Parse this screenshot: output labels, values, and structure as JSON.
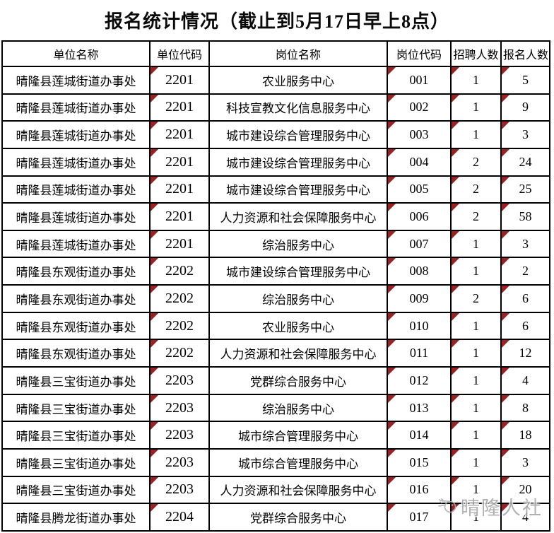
{
  "title": "报名统计情况（截止到5月17日早上8点）",
  "table": {
    "columns": [
      "单位名称",
      "单位代码",
      "岗位名称",
      "岗位代码",
      "招聘人数",
      "报名人数"
    ],
    "marker_columns": [
      "unit_code",
      "post_code",
      "recruit",
      "applicants"
    ],
    "rows": [
      {
        "unit": "晴隆县莲城街道办事处",
        "unit_code": "2201",
        "post": "农业服务中心",
        "post_code": "001",
        "recruit": "1",
        "applicants": "5"
      },
      {
        "unit": "晴隆县莲城街道办事处",
        "unit_code": "2201",
        "post": "科技宣教文化信息服务中心",
        "post_code": "002",
        "recruit": "1",
        "applicants": "9"
      },
      {
        "unit": "晴隆县莲城街道办事处",
        "unit_code": "2201",
        "post": "城市建设综合管理服务中心",
        "post_code": "003",
        "recruit": "1",
        "applicants": "3"
      },
      {
        "unit": "晴隆县莲城街道办事处",
        "unit_code": "2201",
        "post": "城市建设综合管理服务中心",
        "post_code": "004",
        "recruit": "2",
        "applicants": "24"
      },
      {
        "unit": "晴隆县莲城街道办事处",
        "unit_code": "2201",
        "post": "城市建设综合管理服务中心",
        "post_code": "005",
        "recruit": "2",
        "applicants": "25"
      },
      {
        "unit": "晴隆县莲城街道办事处",
        "unit_code": "2201",
        "post": "人力资源和社会保障服务中心",
        "post_code": "006",
        "recruit": "2",
        "applicants": "58"
      },
      {
        "unit": "晴隆县莲城街道办事处",
        "unit_code": "2201",
        "post": "综治服务中心",
        "post_code": "007",
        "recruit": "1",
        "applicants": "3"
      },
      {
        "unit": "晴隆县东观街道办事处",
        "unit_code": "2202",
        "post": "城市建设综合管理服务中心",
        "post_code": "008",
        "recruit": "1",
        "applicants": "2"
      },
      {
        "unit": "晴隆县东观街道办事处",
        "unit_code": "2202",
        "post": "综治服务中心",
        "post_code": "009",
        "recruit": "2",
        "applicants": "6"
      },
      {
        "unit": "晴隆县东观街道办事处",
        "unit_code": "2202",
        "post": "农业服务中心",
        "post_code": "010",
        "recruit": "1",
        "applicants": "6"
      },
      {
        "unit": "晴隆县东观街道办事处",
        "unit_code": "2202",
        "post": "人力资源和社会保障服务中心",
        "post_code": "011",
        "recruit": "1",
        "applicants": "12"
      },
      {
        "unit": "晴隆县三宝街道办事处",
        "unit_code": "2203",
        "post": "党群综合服务中心",
        "post_code": "012",
        "recruit": "1",
        "applicants": "4"
      },
      {
        "unit": "晴隆县三宝街道办事处",
        "unit_code": "2203",
        "post": "综治服务中心",
        "post_code": "013",
        "recruit": "1",
        "applicants": "8"
      },
      {
        "unit": "晴隆县三宝街道办事处",
        "unit_code": "2203",
        "post": "城市综合管理服务中心",
        "post_code": "014",
        "recruit": "1",
        "applicants": "18"
      },
      {
        "unit": "晴隆县三宝街道办事处",
        "unit_code": "2203",
        "post": "城市综合管理服务中心",
        "post_code": "015",
        "recruit": "1",
        "applicants": "3"
      },
      {
        "unit": "晴隆县三宝街道办事处",
        "unit_code": "2203",
        "post": "人力资源和社会保障服务中心",
        "post_code": "016",
        "recruit": "1",
        "applicants": "20"
      },
      {
        "unit": "晴隆县腾龙街道办事处",
        "unit_code": "2204",
        "post": "党群综合服务中心",
        "post_code": "017",
        "recruit": "1",
        "applicants": "4"
      }
    ]
  },
  "watermark": {
    "text": "晴隆人社"
  },
  "colors": {
    "marker": "#9a2222",
    "border": "#000000",
    "watermark_text": "#a9a9a9",
    "background": "#ffffff"
  }
}
